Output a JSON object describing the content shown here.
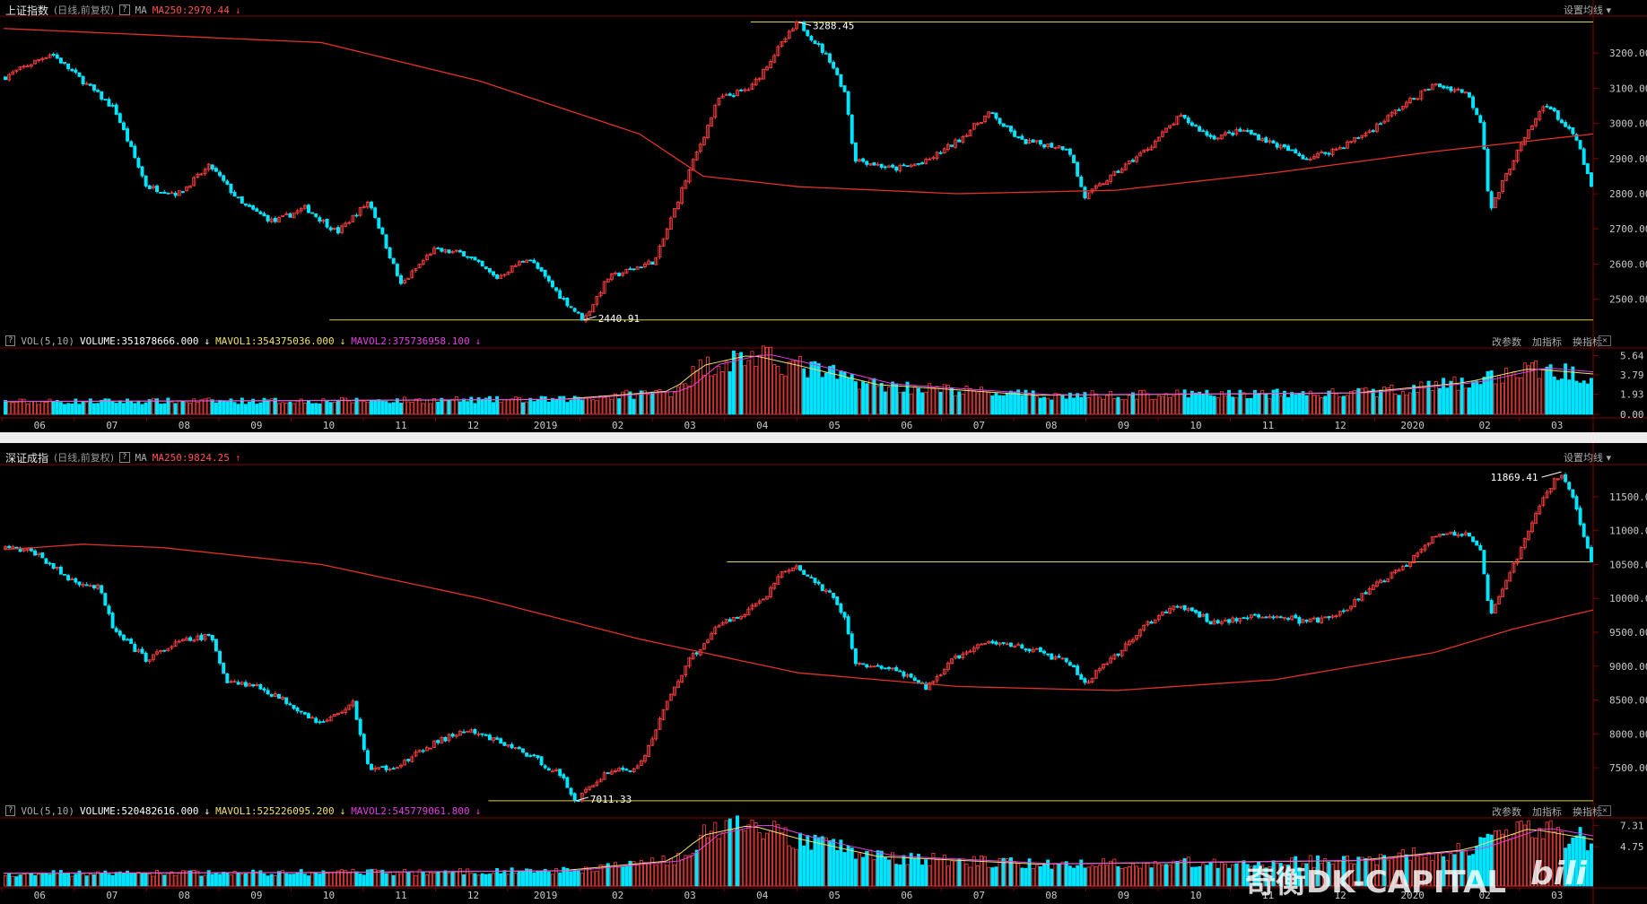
{
  "panels": [
    {
      "index_name": "上证指数",
      "sub": "(日线,前复权)",
      "ma_label": "MA",
      "ma250_text": "MA250:2970.44",
      "ma250_dir": "↓",
      "settings_label": "设置均线",
      "vol": {
        "label": "VOL(5,10)",
        "volume_text": "VOLUME:351878666.000",
        "volume_dir": "↓",
        "mavol1_text": "MAVOL1:354375036.000",
        "mavol1_dir": "↓",
        "mavol2_text": "MAVOL2:375736958.100",
        "mavol2_dir": "↓",
        "tools": [
          "改参数",
          "加指标",
          "换指标"
        ]
      }
    },
    {
      "index_name": "深证成指",
      "sub": "(日线,前复权)",
      "ma_label": "MA",
      "ma250_text": "MA250:9824.25",
      "ma250_dir": "↑",
      "settings_label": "设置均线",
      "vol": {
        "label": "VOL(5,10)",
        "volume_text": "VOLUME:520482616.000",
        "volume_dir": "↓",
        "mavol1_text": "MAVOL1:525226095.200",
        "mavol1_dir": "↓",
        "mavol2_text": "MAVOL2:545779061.800",
        "mavol2_dir": "↓",
        "tools": [
          "改参数",
          "加指标",
          "换指标"
        ]
      }
    }
  ],
  "watermark": {
    "main": "奇衡DK-CAPITAL",
    "logo": "bili"
  },
  "colors": {
    "up": "#ff4040",
    "down": "#00e5ff",
    "ma250": "#e0322a",
    "level": "#d8d050",
    "mavol1": "#f0e070",
    "mavol2": "#e040e0",
    "axis": "#800000"
  },
  "chart_data": [
    {
      "type": "candlestick",
      "title": "上证指数",
      "ylim": [
        2420,
        3300
      ],
      "yticks": [
        2500,
        2600,
        2700,
        2800,
        2900,
        3000,
        3100,
        3200
      ],
      "ytick_labels": [
        "2500.00",
        "2600.00",
        "2700.00",
        "2800.00",
        "2900.00",
        "3000.00",
        "3100.00",
        "3200.00"
      ],
      "x_labels": [
        "06",
        "07",
        "08",
        "09",
        "10",
        "11",
        "12",
        "2019",
        "02",
        "03",
        "04",
        "05",
        "06",
        "07",
        "08",
        "09",
        "10",
        "11",
        "12",
        "2020",
        "02",
        "03"
      ],
      "anchors": [
        [
          0,
          3130
        ],
        [
          0.03,
          3200
        ],
        [
          0.05,
          3120
        ],
        [
          0.07,
          3040
        ],
        [
          0.09,
          2820
        ],
        [
          0.11,
          2800
        ],
        [
          0.13,
          2880
        ],
        [
          0.15,
          2770
        ],
        [
          0.17,
          2720
        ],
        [
          0.19,
          2760
        ],
        [
          0.21,
          2690
        ],
        [
          0.23,
          2780
        ],
        [
          0.235,
          2720
        ],
        [
          0.25,
          2540
        ],
        [
          0.27,
          2640
        ],
        [
          0.29,
          2630
        ],
        [
          0.31,
          2560
        ],
        [
          0.33,
          2620
        ],
        [
          0.35,
          2510
        ],
        [
          0.365,
          2440.91
        ],
        [
          0.38,
          2560
        ],
        [
          0.41,
          2610
        ],
        [
          0.43,
          2850
        ],
        [
          0.45,
          3070
        ],
        [
          0.47,
          3100
        ],
        [
          0.49,
          3230
        ],
        [
          0.5,
          3288.45
        ],
        [
          0.52,
          3180
        ],
        [
          0.53,
          3080
        ],
        [
          0.535,
          2900
        ],
        [
          0.56,
          2870
        ],
        [
          0.58,
          2890
        ],
        [
          0.6,
          2950
        ],
        [
          0.62,
          3030
        ],
        [
          0.64,
          2950
        ],
        [
          0.67,
          2930
        ],
        [
          0.68,
          2790
        ],
        [
          0.7,
          2860
        ],
        [
          0.72,
          2930
        ],
        [
          0.74,
          3020
        ],
        [
          0.76,
          2960
        ],
        [
          0.78,
          2980
        ],
        [
          0.8,
          2940
        ],
        [
          0.82,
          2900
        ],
        [
          0.84,
          2930
        ],
        [
          0.86,
          2980
        ],
        [
          0.88,
          3050
        ],
        [
          0.9,
          3110
        ],
        [
          0.92,
          3090
        ],
        [
          0.93,
          3000
        ],
        [
          0.935,
          2750
        ],
        [
          0.95,
          2900
        ],
        [
          0.97,
          3060
        ],
        [
          0.99,
          2950
        ],
        [
          1.0,
          2800
        ]
      ],
      "ma250": [
        [
          0,
          3270
        ],
        [
          0.2,
          3230
        ],
        [
          0.3,
          3120
        ],
        [
          0.4,
          2970
        ],
        [
          0.44,
          2850
        ],
        [
          0.5,
          2820
        ],
        [
          0.6,
          2800
        ],
        [
          0.7,
          2810
        ],
        [
          0.8,
          2860
        ],
        [
          0.9,
          2920
        ],
        [
          1.0,
          2970
        ]
      ],
      "levels": [
        {
          "value": 3288.45,
          "x_start": 0.47,
          "x_end": 1.0
        },
        {
          "value": 2440.91,
          "x_start": 0.205,
          "x_end": 1.0
        }
      ],
      "annotations": [
        {
          "text": "3288.45",
          "x": 0.5,
          "value": 3288.45
        },
        {
          "text": "2440.91",
          "x": 0.365,
          "value": 2440.91
        }
      ],
      "vol_ylim": [
        0,
        6.2
      ],
      "vol_ticks": [
        0.0,
        1.93,
        3.79,
        5.64
      ],
      "vol_tick_labels": [
        "0.00",
        "1.93",
        "3.79",
        "5.64"
      ],
      "vol_anchors": [
        [
          0,
          1.2
        ],
        [
          0.2,
          1.3
        ],
        [
          0.35,
          1.4
        ],
        [
          0.42,
          2.2
        ],
        [
          0.44,
          4.6
        ],
        [
          0.47,
          5.6
        ],
        [
          0.5,
          4.6
        ],
        [
          0.55,
          2.8
        ],
        [
          0.65,
          1.8
        ],
        [
          0.75,
          1.9
        ],
        [
          0.85,
          2.0
        ],
        [
          0.92,
          3.0
        ],
        [
          0.96,
          4.3
        ],
        [
          1.0,
          3.8
        ]
      ]
    },
    {
      "type": "candlestick",
      "title": "深证成指",
      "ylim": [
        7050,
        11950
      ],
      "yticks": [
        7500,
        8000,
        8500,
        9000,
        9500,
        10000,
        10500,
        11000,
        11500
      ],
      "ytick_labels": [
        "7500.00",
        "8000.00",
        "8500.00",
        "9000.00",
        "9500.00",
        "10000.00",
        "10500.00",
        "11000.00",
        "11500.00"
      ],
      "x_labels": [
        "06",
        "07",
        "08",
        "09",
        "10",
        "11",
        "12",
        "2019",
        "02",
        "03",
        "04",
        "05",
        "06",
        "07",
        "08",
        "09",
        "10",
        "11",
        "12",
        "2020",
        "02",
        "03"
      ],
      "anchors": [
        [
          0,
          10750
        ],
        [
          0.02,
          10680
        ],
        [
          0.04,
          10300
        ],
        [
          0.06,
          10150
        ],
        [
          0.07,
          9500
        ],
        [
          0.09,
          9100
        ],
        [
          0.11,
          9350
        ],
        [
          0.13,
          9450
        ],
        [
          0.14,
          8800
        ],
        [
          0.16,
          8700
        ],
        [
          0.18,
          8450
        ],
        [
          0.2,
          8150
        ],
        [
          0.22,
          8450
        ],
        [
          0.23,
          7450
        ],
        [
          0.25,
          7550
        ],
        [
          0.27,
          7850
        ],
        [
          0.29,
          8050
        ],
        [
          0.31,
          7900
        ],
        [
          0.33,
          7700
        ],
        [
          0.35,
          7400
        ],
        [
          0.36,
          7011.33
        ],
        [
          0.38,
          7450
        ],
        [
          0.4,
          7500
        ],
        [
          0.42,
          8600
        ],
        [
          0.43,
          9050
        ],
        [
          0.45,
          9600
        ],
        [
          0.47,
          9850
        ],
        [
          0.48,
          10050
        ],
        [
          0.49,
          10400
        ],
        [
          0.5,
          10450
        ],
        [
          0.52,
          10050
        ],
        [
          0.53,
          9700
        ],
        [
          0.535,
          9050
        ],
        [
          0.56,
          8950
        ],
        [
          0.58,
          8680
        ],
        [
          0.6,
          9150
        ],
        [
          0.62,
          9350
        ],
        [
          0.64,
          9300
        ],
        [
          0.67,
          9050
        ],
        [
          0.68,
          8750
        ],
        [
          0.7,
          9150
        ],
        [
          0.72,
          9650
        ],
        [
          0.74,
          9900
        ],
        [
          0.76,
          9650
        ],
        [
          0.78,
          9700
        ],
        [
          0.8,
          9750
        ],
        [
          0.82,
          9650
        ],
        [
          0.84,
          9750
        ],
        [
          0.86,
          10150
        ],
        [
          0.88,
          10450
        ],
        [
          0.9,
          10950
        ],
        [
          0.92,
          10950
        ],
        [
          0.93,
          10650
        ],
        [
          0.935,
          9700
        ],
        [
          0.95,
          10500
        ],
        [
          0.97,
          11550
        ],
        [
          0.98,
          11869.41
        ],
        [
          0.99,
          11300
        ],
        [
          1.0,
          10400
        ]
      ],
      "ma250": [
        [
          0,
          10720
        ],
        [
          0.05,
          10800
        ],
        [
          0.1,
          10750
        ],
        [
          0.2,
          10500
        ],
        [
          0.3,
          10000
        ],
        [
          0.4,
          9400
        ],
        [
          0.5,
          8900
        ],
        [
          0.6,
          8700
        ],
        [
          0.7,
          8640
        ],
        [
          0.8,
          8800
        ],
        [
          0.9,
          9200
        ],
        [
          0.95,
          9550
        ],
        [
          1.0,
          9830
        ]
      ],
      "levels": [
        {
          "value": 10540,
          "x_start": 0.455,
          "x_end": 1.0
        },
        {
          "value": 7011.33,
          "x_start": 0.305,
          "x_end": 1.0
        }
      ],
      "annotations": [
        {
          "text": "11869.41",
          "x": 0.98,
          "value": 11869.41
        },
        {
          "text": "7011.33",
          "x": 0.36,
          "value": 7011.33
        }
      ],
      "vol_ylim": [
        0,
        8.0
      ],
      "vol_ticks": [
        4.75,
        7.31
      ],
      "vol_tick_labels": [
        "4.75",
        "7.31"
      ],
      "vol_anchors": [
        [
          0,
          1.5
        ],
        [
          0.2,
          1.6
        ],
        [
          0.35,
          1.8
        ],
        [
          0.42,
          3.0
        ],
        [
          0.44,
          6.0
        ],
        [
          0.47,
          7.2
        ],
        [
          0.5,
          5.6
        ],
        [
          0.55,
          3.5
        ],
        [
          0.65,
          2.6
        ],
        [
          0.75,
          2.8
        ],
        [
          0.85,
          3.0
        ],
        [
          0.92,
          4.3
        ],
        [
          0.96,
          6.8
        ],
        [
          1.0,
          5.5
        ]
      ]
    }
  ]
}
